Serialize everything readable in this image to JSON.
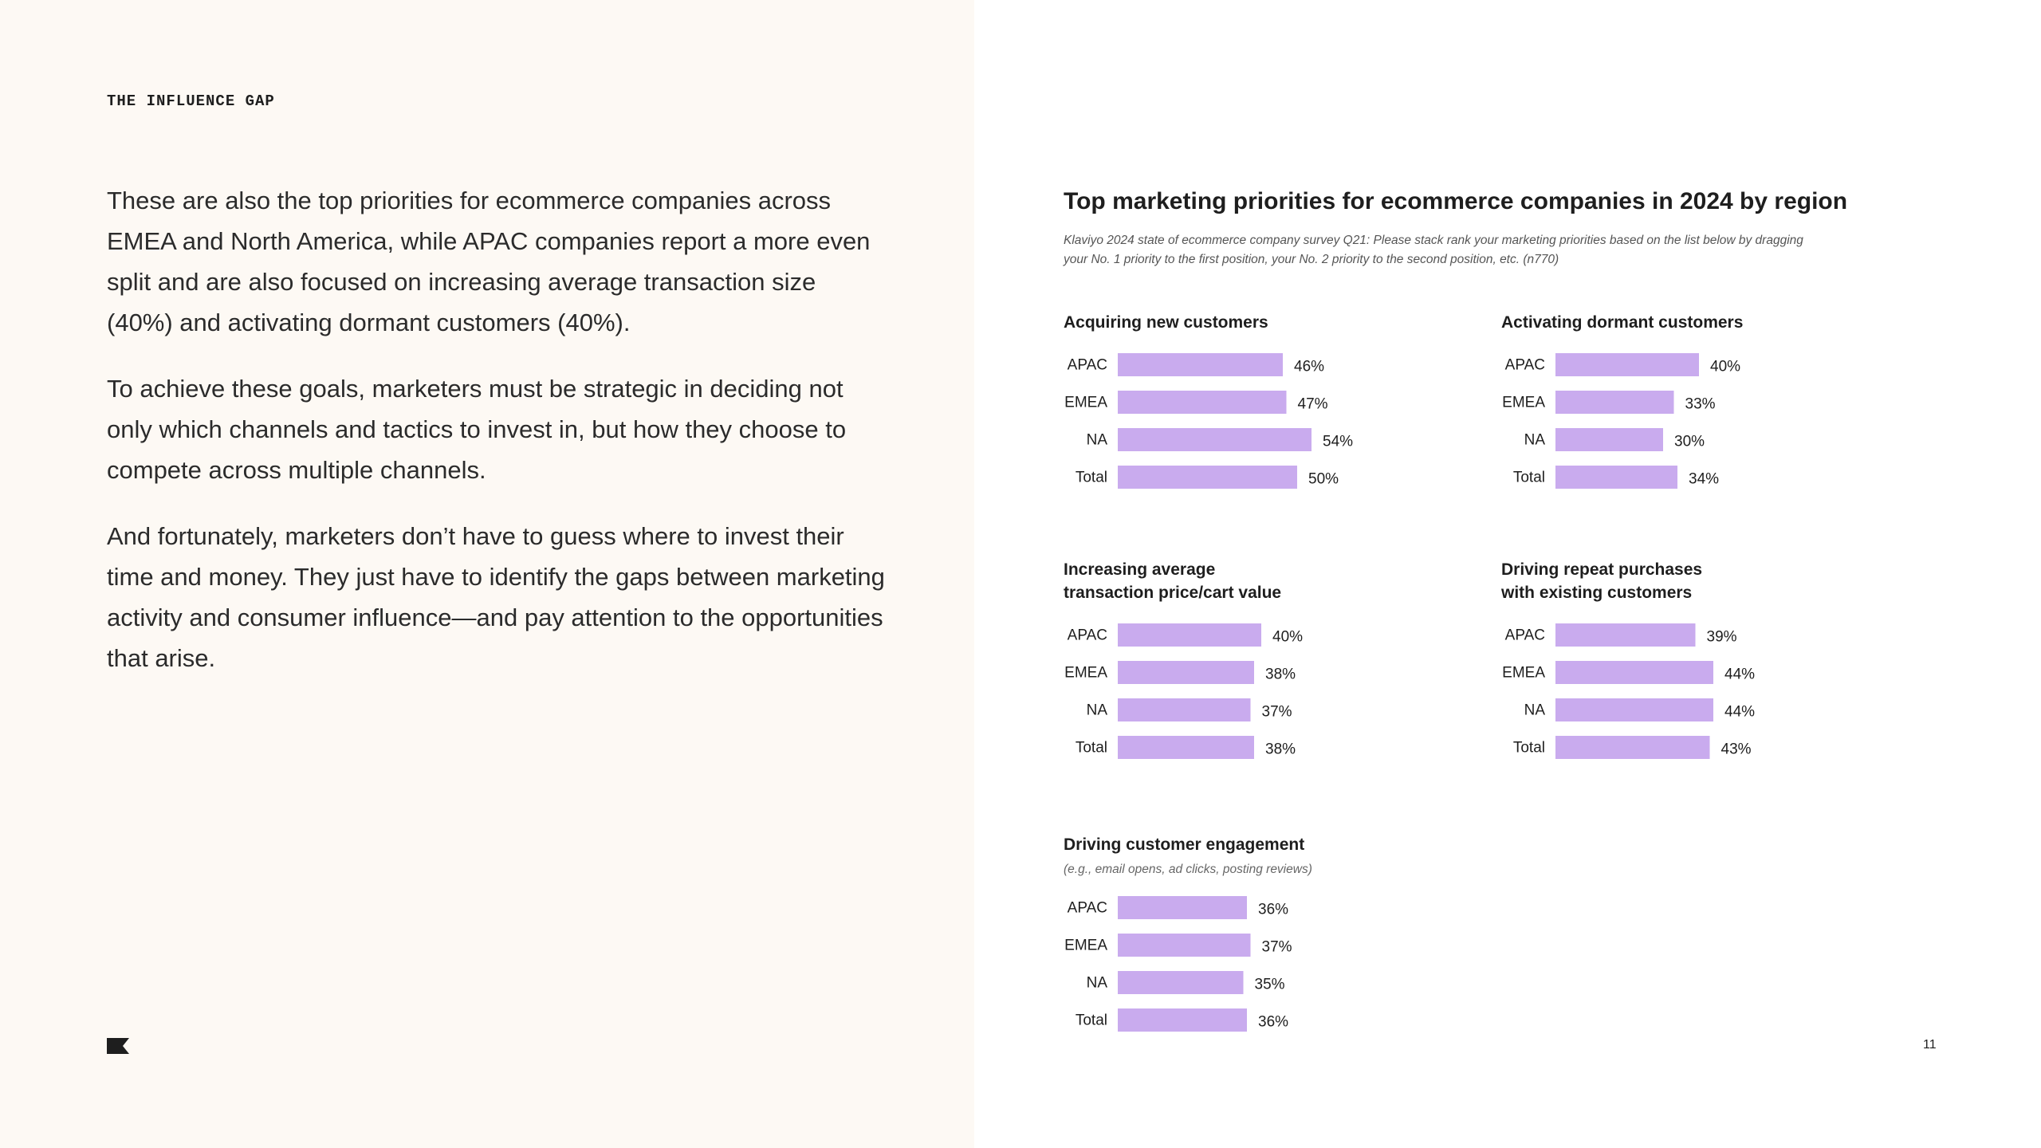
{
  "header": {
    "section_label": "THE INFLUENCE GAP"
  },
  "body": {
    "paragraphs": [
      "These are also the top priorities for ecommerce companies across EMEA and North America, while APAC companies report a more even split and are also focused on increasing average transaction size (40%) and activating dormant customers (40%).",
      "To achieve these goals, marketers must be strategic in deciding not only which channels and tactics to invest in, but how they choose to compete across multiple channels.",
      "And fortunately, marketers don’t have to guess where to invest their time and money. They just have to identify the gaps between marketing activity and consumer influence—and pay attention to the opportunities that arise."
    ]
  },
  "footer": {
    "page_number": "11"
  },
  "chart_title": "Top marketing priorities for ecommerce companies in 2024 by region",
  "chart_source": "Klaviyo 2024 state of ecommerce company survey Q21: Please stack rank your marketing priorities based on the list below by dragging your No. 1 priority to the first position, your No. 2 priority to the second position, etc. (n770)",
  "colors": {
    "bar": "#c9abee",
    "left_background": "#fdf9f4"
  },
  "chart_data": [
    {
      "type": "bar",
      "orientation": "horizontal",
      "title": "Acquiring new customers",
      "subtitle": "",
      "categories": [
        "APAC",
        "EMEA",
        "NA",
        "Total"
      ],
      "values": [
        46,
        47,
        54,
        50
      ],
      "value_labels": [
        "46%",
        "47%",
        "54%",
        "50%"
      ],
      "unit": "%"
    },
    {
      "type": "bar",
      "orientation": "horizontal",
      "title": "Activating dormant customers",
      "subtitle": "",
      "categories": [
        "APAC",
        "EMEA",
        "NA",
        "Total"
      ],
      "values": [
        40,
        33,
        30,
        34
      ],
      "value_labels": [
        "40%",
        "33%",
        "30%",
        "34%"
      ],
      "unit": "%"
    },
    {
      "type": "bar",
      "orientation": "horizontal",
      "title": "Increasing average\ntransaction price/cart value",
      "subtitle": "",
      "categories": [
        "APAC",
        "EMEA",
        "NA",
        "Total"
      ],
      "values": [
        40,
        38,
        37,
        38
      ],
      "value_labels": [
        "40%",
        "38%",
        "37%",
        "38%"
      ],
      "unit": "%"
    },
    {
      "type": "bar",
      "orientation": "horizontal",
      "title": "Driving repeat purchases\nwith existing customers",
      "subtitle": "",
      "categories": [
        "APAC",
        "EMEA",
        "NA",
        "Total"
      ],
      "values": [
        39,
        44,
        44,
        43
      ],
      "value_labels": [
        "39%",
        "44%",
        "44%",
        "43%"
      ],
      "unit": "%"
    },
    {
      "type": "bar",
      "orientation": "horizontal",
      "title": "Driving customer engagement",
      "subtitle": "(e.g., email opens, ad clicks, posting reviews)",
      "categories": [
        "APAC",
        "EMEA",
        "NA",
        "Total"
      ],
      "values": [
        36,
        37,
        35,
        36
      ],
      "value_labels": [
        "36%",
        "37%",
        "35%",
        "36%"
      ],
      "unit": "%"
    }
  ]
}
